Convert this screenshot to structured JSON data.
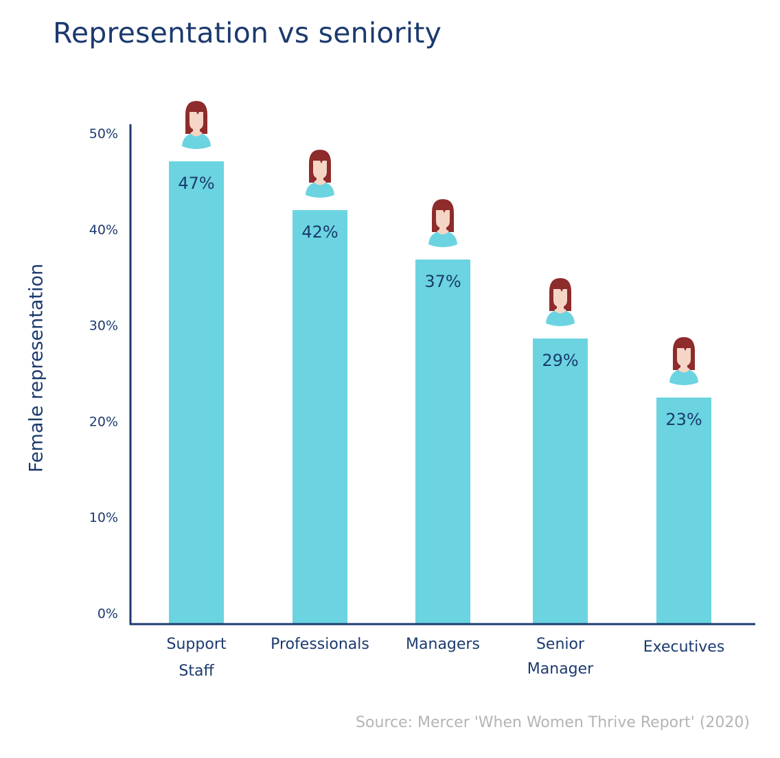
{
  "chart_data": {
    "type": "bar",
    "title": "Representation vs seniority",
    "xlabel": "",
    "ylabel": "Female representation",
    "ylim": [
      0,
      50
    ],
    "yticks": [
      0,
      10,
      20,
      30,
      40,
      50
    ],
    "ytick_labels": [
      "0%",
      "10%",
      "20%",
      "30%",
      "40%",
      "50%"
    ],
    "categories": [
      "Support Staff",
      "Professionals",
      "Managers",
      "Senior Manager",
      "Executives"
    ],
    "category_lines": [
      [
        "Support",
        "Staff"
      ],
      [
        "Professionals"
      ],
      [
        "Managers"
      ],
      [
        "Senior",
        "Manager"
      ],
      [
        "Executives"
      ]
    ],
    "values": [
      47,
      42,
      37,
      29,
      23
    ],
    "data_labels": [
      "47%",
      "42%",
      "37%",
      "29%",
      "23%"
    ],
    "bar_icon": "woman-avatar-icon",
    "grid": false,
    "legend": "none",
    "source": "Source: Mercer 'When Women Thrive Report' (2020)"
  },
  "colors": {
    "bar": "#6bd4e0",
    "text": "#1b3a6e",
    "axis": "#1b3a6e",
    "source": "#b4b4b4",
    "hair": "#8e2b2b",
    "skin": "#f5d5c5",
    "shirt": "#6bd4e0"
  }
}
